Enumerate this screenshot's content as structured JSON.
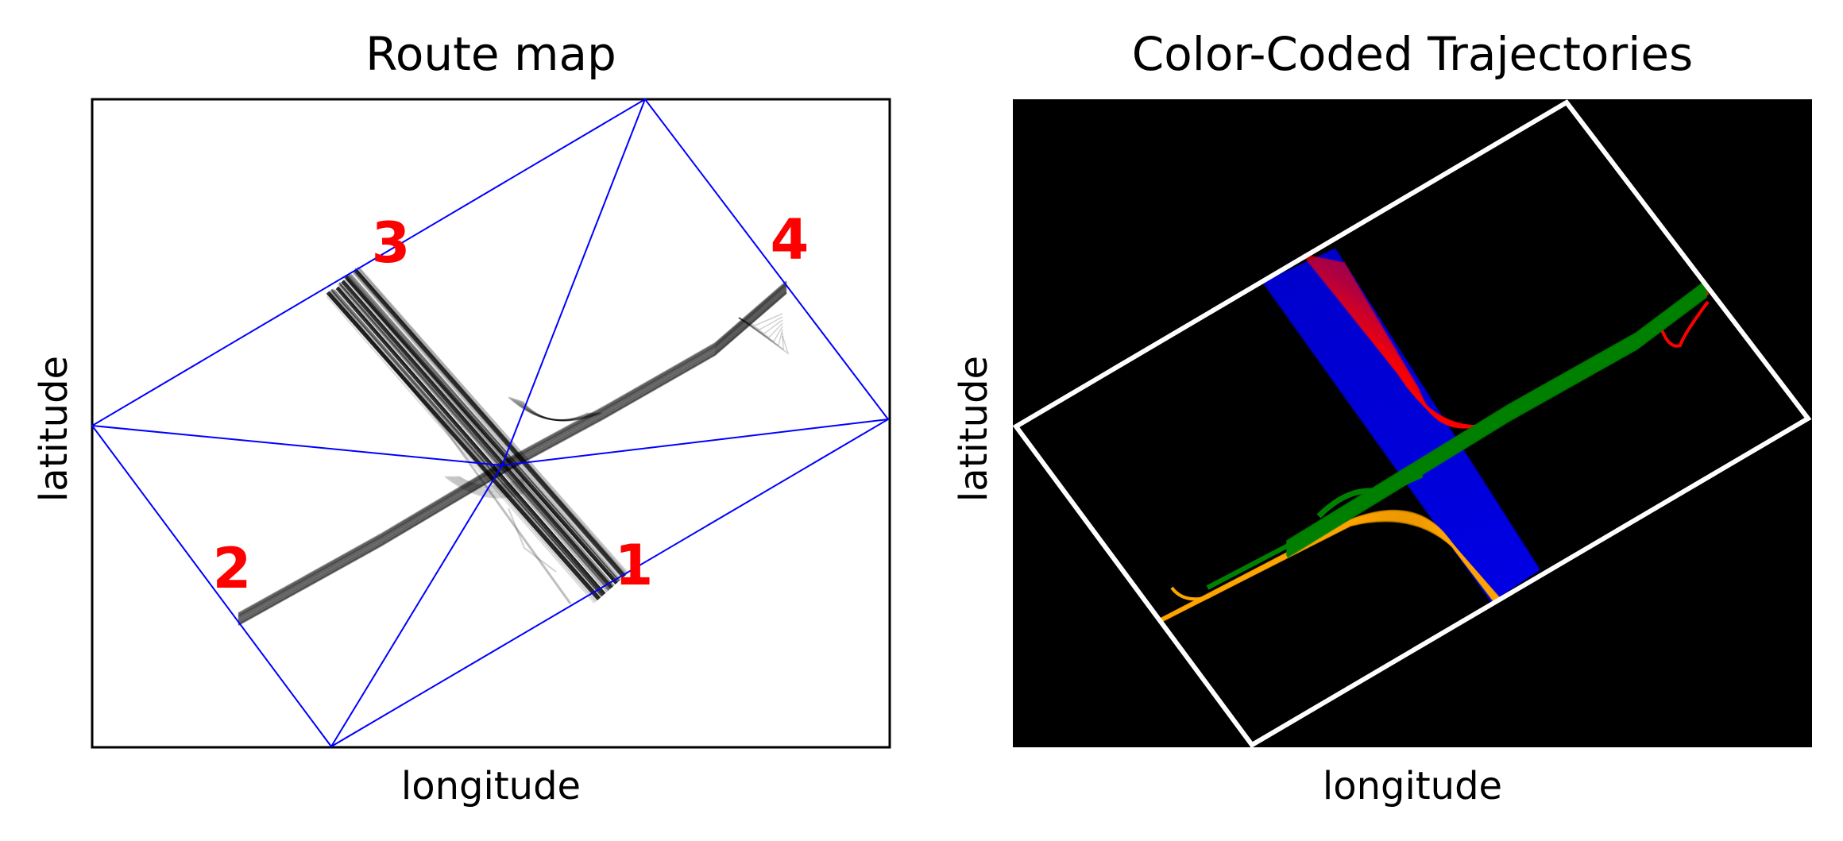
{
  "chart_data": [
    {
      "type": "line",
      "title": "Route map",
      "xlabel": "longitude",
      "ylabel": "latitude",
      "ticks": "none",
      "background": "#ffffff",
      "boundary_color": "#0000ff",
      "trajectory_color": "#000000",
      "corner_label_color": "#ff0000",
      "corner_labels": [
        "1",
        "2",
        "3",
        "4"
      ]
    },
    {
      "type": "line",
      "title": "Color-Coded Trajectories",
      "xlabel": "longitude",
      "ylabel": "latitude",
      "ticks": "none",
      "background": "#000000",
      "boundary_color": "#ffffff",
      "series_colors": [
        "#0000ff",
        "#ff0000",
        "#008000",
        "#ffa500"
      ]
    }
  ]
}
